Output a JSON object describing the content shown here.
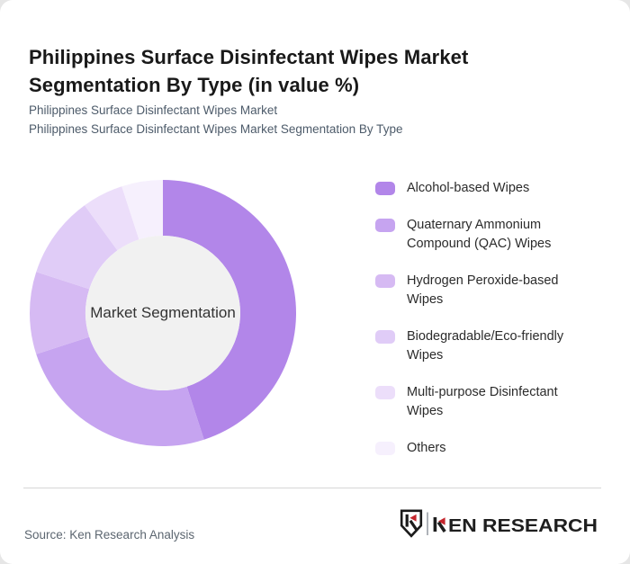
{
  "page": {
    "background": "#e6e6e6",
    "card_background": "#ffffff",
    "divider_color": "#d7d7d7"
  },
  "header": {
    "title": "Philippines Surface Disinfectant Wipes Market Segmentation By Type (in value %)",
    "subtitle_lines": [
      "Philippines Surface Disinfectant Wipes Market",
      "Philippines Surface Disinfectant Wipes Market Segmentation By Type"
    ]
  },
  "chart_data": {
    "type": "pie",
    "variant": "donut",
    "title": "Philippines Surface Disinfectant Wipes Market Segmentation By Type (in value %)",
    "center_label": "Market Segmentation",
    "unit": "value %",
    "categories": [
      "Alcohol-based Wipes",
      "Quaternary Ammonium Compound (QAC) Wipes",
      "Hydrogen Peroxide-based Wipes",
      "Biodegradable/Eco-friendly Wipes",
      "Multi-purpose Disinfectant Wipes",
      "Others"
    ],
    "values": [
      45,
      25,
      10,
      10,
      5,
      5
    ],
    "colors": [
      "#b286e9",
      "#c6a4f0",
      "#d6baf3",
      "#e0ccf7",
      "#ecdefa",
      "#f6f0fd"
    ],
    "center_fill": "#f1f1f1",
    "start_angle_deg": 0,
    "direction": "clockwise",
    "inner_radius_ratio": 0.58,
    "legend_position": "right",
    "data_labels_shown": false
  },
  "footer": {
    "source": "Source: Ken Research Analysis",
    "brand": "KEN RESEARCH",
    "brand_text_after_k": "EN RESEARCH",
    "brand_red": "#c5262d",
    "brand_dark": "#1e1e1e"
  }
}
